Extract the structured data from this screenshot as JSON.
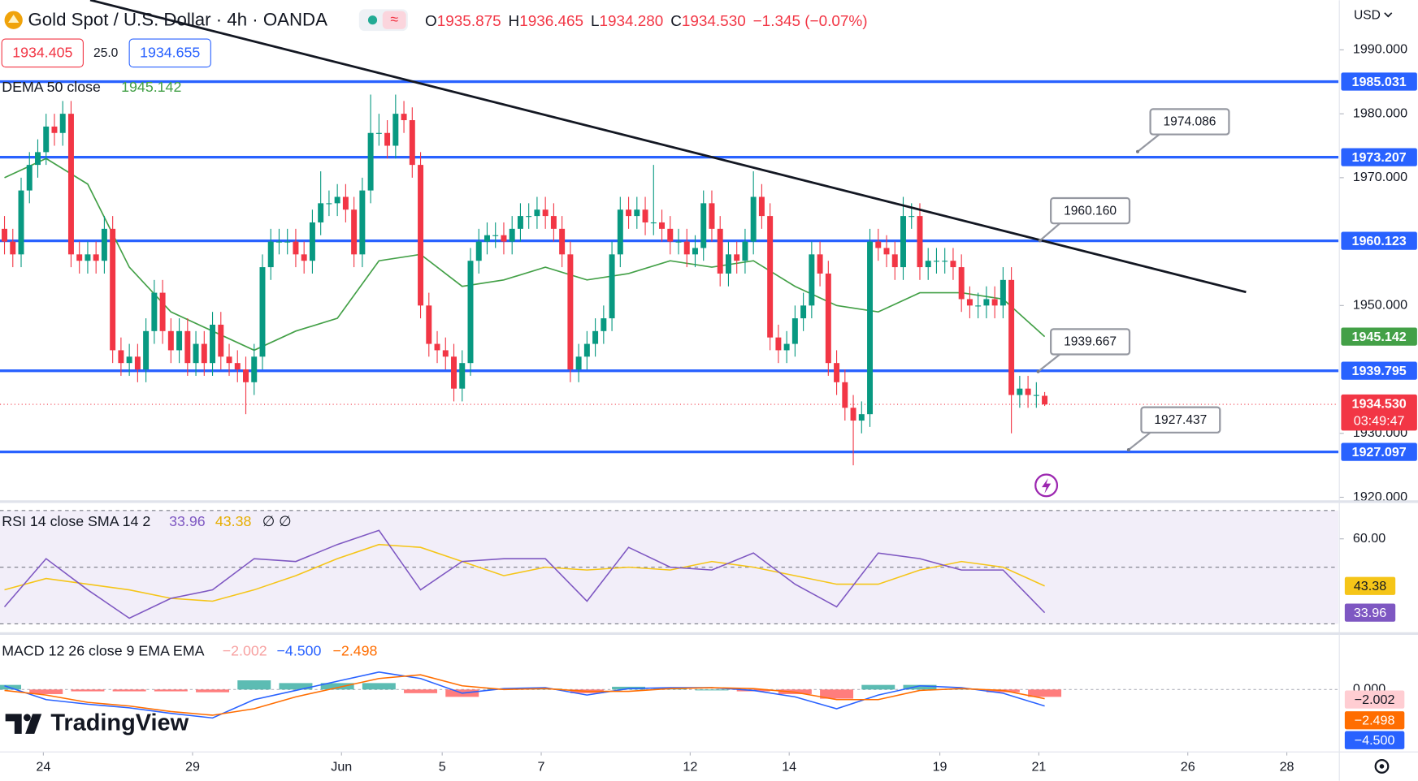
{
  "header": {
    "title": "Gold Spot / U.S. Dollar · 4h · OANDA",
    "ohlc": [
      [
        "O",
        "1935.875"
      ],
      [
        "H",
        "1936.465"
      ],
      [
        "L",
        "1934.280"
      ],
      [
        "C",
        "1934.530"
      ]
    ],
    "change": "−1.345 (−0.07%)",
    "bid": "1934.405",
    "spread": "25.0",
    "ask": "1934.655",
    "currency": "USD",
    "logo": "TradingView"
  },
  "chart_data": [
    {
      "type": "candlestick",
      "xlim": [
        -0.54,
        160.3
      ],
      "ylim": [
        1919.6,
        1997.77
      ],
      "xticks": [
        {
          "value": 4.67,
          "label": "24"
        },
        {
          "value": 22.6,
          "label": "29"
        },
        {
          "value": 40.5,
          "label": "Jun"
        },
        {
          "value": 52.6,
          "label": "5"
        },
        {
          "value": 64.5,
          "label": "7"
        },
        {
          "value": 82.4,
          "label": "12"
        },
        {
          "value": 94.3,
          "label": "14"
        },
        {
          "value": 112.4,
          "label": "19"
        },
        {
          "value": 124.3,
          "label": "21"
        },
        {
          "value": 142.2,
          "label": "26"
        },
        {
          "value": 154.1,
          "label": "28"
        }
      ],
      "yticks": [
        {
          "value": 1990,
          "label": "1990.000"
        },
        {
          "value": 1980,
          "label": "1980.000"
        },
        {
          "value": 1970,
          "label": "1970.000"
        },
        {
          "value": 1950,
          "label": "1950.000"
        },
        {
          "value": 1930,
          "label": "1930.000"
        },
        {
          "value": 1920,
          "label": "1920.000"
        }
      ],
      "grid": false,
      "up_color": "#089981",
      "down_color": "#f23645",
      "open": [
        1962,
        1960,
        1958,
        1968,
        1972,
        1974,
        1978,
        1977,
        1980,
        1958,
        1957,
        1958,
        1957,
        1962,
        1943,
        1941,
        1942,
        1940,
        1946,
        1952,
        1946,
        1943,
        1946,
        1941,
        1944,
        1941,
        1947,
        1942,
        1941,
        1940,
        1938,
        1942,
        1956,
        1960,
        1960,
        1960,
        1958,
        1957,
        1963,
        1966,
        1966,
        1967,
        1965,
        1958,
        1968,
        1977,
        1977,
        1975,
        1980,
        1979,
        1972,
        1950,
        1944,
        1943,
        1942,
        1937,
        1941,
        1957,
        1960,
        1961,
        1961,
        1960,
        1962,
        1964,
        1964,
        1965,
        1964,
        1962,
        1958,
        1940,
        1942,
        1944,
        1946,
        1948,
        1958,
        1965,
        1964,
        1965,
        1963,
        1963,
        1962,
        1960,
        1960,
        1958,
        1959,
        1966,
        1962,
        1955,
        1958,
        1957,
        1960,
        1967,
        1964,
        1945,
        1943,
        1944,
        1948,
        1950,
        1958,
        1955,
        1941,
        1938,
        1934,
        1932,
        1933,
        1960,
        1959,
        1958,
        1956,
        1964,
        1964,
        1956,
        1957,
        1957,
        1957,
        1956,
        1951,
        1950,
        1950,
        1951,
        1950,
        1954,
        1936,
        1937,
        1936,
        1935.875
      ],
      "high": [
        1964,
        1962,
        1970,
        1974,
        1976,
        1980,
        1980,
        1982,
        1982,
        1960,
        1960,
        1960,
        1964,
        1964,
        1945,
        1944,
        1944,
        1948,
        1954,
        1954,
        1948,
        1948,
        1948,
        1946,
        1946,
        1949,
        1949,
        1944,
        1943,
        1942,
        1944,
        1958,
        1962,
        1962,
        1962,
        1962,
        1960,
        1965,
        1971,
        1968,
        1969,
        1969,
        1967,
        1970,
        1983,
        1980,
        1979,
        1983,
        1982,
        1981,
        1974,
        1952,
        1946,
        1945,
        1944,
        1943,
        1959,
        1962,
        1963,
        1963,
        1963,
        1964,
        1966,
        1966,
        1967,
        1967,
        1966,
        1964,
        1960,
        1944,
        1946,
        1948,
        1950,
        1960,
        1967,
        1967,
        1967,
        1967,
        1972,
        1965,
        1964,
        1962,
        1962,
        1961,
        1968,
        1968,
        1964,
        1960,
        1960,
        1962,
        1971,
        1969,
        1966,
        1947,
        1946,
        1950,
        1952,
        1960,
        1960,
        1957,
        1943,
        1940,
        1936,
        1935,
        1962,
        1962,
        1961,
        1960,
        1967,
        1966,
        1966,
        1959,
        1959,
        1959,
        1959,
        1958,
        1953,
        1952,
        1953,
        1953,
        1956,
        1956,
        1939,
        1939,
        1938,
        1936.465
      ],
      "low": [
        1958,
        1956,
        1956,
        1966,
        1970,
        1972,
        1975,
        1975,
        1956,
        1955,
        1955,
        1955,
        1955,
        1941,
        1939,
        1939,
        1938,
        1938,
        1944,
        1944,
        1941,
        1941,
        1939,
        1939,
        1939,
        1939,
        1940,
        1939,
        1938,
        1933,
        1936,
        1940,
        1954,
        1958,
        1958,
        1956,
        1955,
        1955,
        1961,
        1964,
        1964,
        1963,
        1956,
        1956,
        1966,
        1975,
        1973,
        1973,
        1977,
        1970,
        1948,
        1942,
        1941,
        1940,
        1935,
        1935,
        1939,
        1955,
        1958,
        1959,
        1958,
        1958,
        1960,
        1962,
        1962,
        1962,
        1960,
        1956,
        1938,
        1938,
        1940,
        1942,
        1944,
        1946,
        1956,
        1962,
        1962,
        1961,
        1961,
        1960,
        1958,
        1958,
        1956,
        1956,
        1957,
        1960,
        1953,
        1953,
        1955,
        1955,
        1958,
        1962,
        1943,
        1941,
        1941,
        1942,
        1946,
        1948,
        1953,
        1939,
        1936,
        1932,
        1925,
        1930,
        1931,
        1957,
        1956,
        1954,
        1954,
        1962,
        1954,
        1954,
        1955,
        1955,
        1954,
        1949,
        1948,
        1948,
        1948,
        1948,
        1948,
        1930,
        1934,
        1934,
        1934,
        1934.28
      ],
      "close": [
        1960,
        1958,
        1968,
        1972,
        1974,
        1978,
        1977,
        1980,
        1958,
        1957,
        1958,
        1957,
        1962,
        1943,
        1941,
        1942,
        1940,
        1946,
        1952,
        1946,
        1943,
        1946,
        1941,
        1944,
        1941,
        1947,
        1942,
        1941,
        1940,
        1938,
        1942,
        1956,
        1960,
        1960,
        1960,
        1958,
        1957,
        1963,
        1966,
        1966,
        1967,
        1965,
        1958,
        1968,
        1977,
        1977,
        1975,
        1980,
        1979,
        1972,
        1950,
        1944,
        1943,
        1942,
        1937,
        1941,
        1957,
        1960,
        1961,
        1961,
        1960,
        1962,
        1964,
        1964,
        1965,
        1964,
        1962,
        1958,
        1940,
        1942,
        1944,
        1946,
        1948,
        1958,
        1965,
        1964,
        1965,
        1963,
        1963,
        1962,
        1960,
        1960,
        1958,
        1959,
        1966,
        1962,
        1955,
        1958,
        1957,
        1960,
        1967,
        1964,
        1945,
        1943,
        1944,
        1948,
        1950,
        1958,
        1955,
        1941,
        1938,
        1934,
        1932,
        1933,
        1960,
        1959,
        1958,
        1956,
        1964,
        1964,
        1956,
        1957,
        1957,
        1957,
        1956,
        1951,
        1950,
        1950,
        1951,
        1950,
        1954,
        1936,
        1937,
        1936,
        1936,
        1934.53
      ],
      "close_label": "1934.530",
      "countdown": "03:49:47",
      "series": [
        {
          "name": "DEMA 50 close",
          "color": "#43a047",
          "x": [
            0,
            5,
            10,
            15,
            20,
            25,
            30,
            35,
            40,
            45,
            50,
            55,
            60,
            65,
            70,
            75,
            80,
            85,
            90,
            95,
            100,
            105,
            110,
            115,
            120,
            125
          ],
          "values": [
            1970,
            1973,
            1969,
            1956,
            1949,
            1946,
            1943,
            1946,
            1948,
            1957,
            1958,
            1953,
            1954,
            1956,
            1954,
            1955,
            1957,
            1956,
            1957,
            1953,
            1950,
            1949,
            1952,
            1952,
            1951,
            1945.142
          ]
        }
      ],
      "levels": [
        {
          "value": 1985.031,
          "label": "1985.031"
        },
        {
          "value": 1973.207,
          "label": "1973.207"
        },
        {
          "value": 1960.123,
          "label": "1960.123"
        },
        {
          "value": 1939.795,
          "label": "1939.795"
        },
        {
          "value": 1927.097,
          "label": "1927.097"
        }
      ],
      "level_color": "#2962ff",
      "trendline": {
        "x": [
          10.3,
          149.2
        ],
        "y": [
          1997.8,
          1952.1
        ]
      },
      "callouts": [
        {
          "value": 1974.086,
          "label": "1974.086"
        },
        {
          "value": 1960.16,
          "label": "1960.160"
        },
        {
          "value": 1939.667,
          "label": "1939.667"
        },
        {
          "value": 1927.437,
          "label": "1927.437"
        }
      ]
    },
    {
      "type": "line",
      "title": "RSI 14 close SMA 14 2",
      "extra": "∅ ∅",
      "ylim": [
        26.9,
        72.5
      ],
      "yticks": [
        {
          "value": 60,
          "label": "60.00"
        }
      ],
      "bands": [
        70,
        50,
        30
      ],
      "series": [
        {
          "name": "RSI",
          "color": "#7e57c2",
          "x": [
            0,
            5,
            10,
            15,
            20,
            25,
            30,
            35,
            40,
            45,
            50,
            55,
            60,
            65,
            70,
            75,
            80,
            85,
            90,
            95,
            100,
            105,
            110,
            115,
            120,
            125
          ],
          "values": [
            36,
            53,
            42,
            32,
            39,
            42,
            53,
            52,
            58,
            63,
            42,
            52,
            53,
            53,
            38,
            57,
            50,
            49,
            55,
            44,
            36,
            55,
            53,
            49,
            49,
            33.96
          ]
        },
        {
          "name": "SMA",
          "color": "#f5c518",
          "x": [
            0,
            5,
            10,
            15,
            20,
            25,
            30,
            35,
            40,
            45,
            50,
            55,
            60,
            65,
            70,
            75,
            80,
            85,
            90,
            95,
            100,
            105,
            110,
            115,
            120,
            125
          ],
          "values": [
            42,
            46,
            44,
            42,
            39,
            38,
            42,
            47,
            53,
            58,
            57,
            52,
            47,
            50,
            49,
            50,
            49,
            52,
            50,
            47,
            44,
            44,
            49,
            52,
            50,
            43.38
          ]
        }
      ]
    },
    {
      "type": "macd",
      "title": "MACD 12 26 close 9 EMA EMA",
      "ylim": [
        -16.5,
        14.75
      ],
      "yticks": [
        {
          "value": 0,
          "label": "0.000"
        }
      ],
      "series": [
        {
          "kind": "histogram",
          "color": "#26a69a",
          "negative_color": "#ff5252",
          "label": "−2.002",
          "label_color": "#f7a1a1",
          "x": [
            0,
            5,
            10,
            15,
            20,
            25,
            30,
            35,
            40,
            45,
            50,
            55,
            60,
            65,
            70,
            75,
            80,
            85,
            90,
            95,
            100,
            105,
            110,
            115,
            120,
            125
          ],
          "values": [
            1.25,
            -1.25,
            -0.5,
            -0.5,
            -0.5,
            -0.75,
            2.5,
            1.75,
            1.75,
            1.75,
            -1,
            -2,
            0.25,
            0.25,
            -1,
            0.75,
            0.25,
            0,
            -0.5,
            -1.25,
            -2.5,
            1.25,
            1.25,
            0.25,
            -0.75,
            -2.002
          ]
        },
        {
          "kind": "line",
          "color": "#2962ff",
          "label": "−4.500",
          "x": [
            0,
            5,
            10,
            15,
            20,
            25,
            30,
            35,
            40,
            45,
            50,
            55,
            60,
            65,
            70,
            75,
            80,
            85,
            90,
            95,
            100,
            105,
            110,
            115,
            120,
            125
          ],
          "values": [
            1,
            -2.75,
            -4,
            -5,
            -6.5,
            -7.75,
            -2.75,
            -0.25,
            2.25,
            4.75,
            3,
            -1,
            0.25,
            0.5,
            -1.5,
            0.25,
            0.5,
            0.5,
            -0.25,
            -2,
            -5.25,
            -1.5,
            1,
            0.5,
            -1,
            -4.5
          ]
        },
        {
          "kind": "line",
          "color": "#ff6d00",
          "label": "−2.498",
          "x": [
            0,
            5,
            10,
            15,
            20,
            25,
            30,
            35,
            40,
            45,
            50,
            55,
            60,
            65,
            70,
            75,
            80,
            85,
            90,
            95,
            100,
            105,
            110,
            115,
            120,
            125
          ],
          "values": [
            -0.25,
            -1.5,
            -3.5,
            -4.5,
            -6,
            -7,
            -5.25,
            -2,
            0.5,
            3,
            4,
            1,
            0,
            0.25,
            -0.5,
            -0.5,
            0.25,
            0.5,
            0.25,
            -0.75,
            -2.75,
            -2.75,
            -0.25,
            0.25,
            -0.25,
            -2.498
          ]
        }
      ]
    }
  ]
}
